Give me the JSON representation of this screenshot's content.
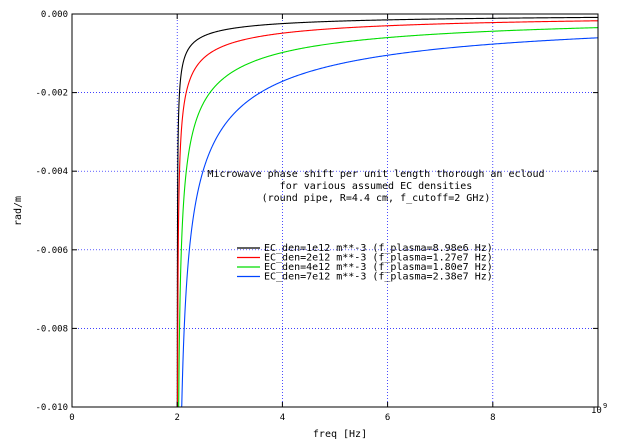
{
  "chart_data": {
    "type": "line",
    "title": "",
    "xlabel": "freq [Hz]",
    "ylabel": "rad/m",
    "xlim": [
      0,
      10
    ],
    "ylim": [
      -0.01,
      0.0
    ],
    "x_exponent_base": "10",
    "x_exponent_power": "9",
    "x_ticks": [
      0,
      2,
      4,
      6,
      8,
      10
    ],
    "x_tick_labels": [
      "0",
      "2",
      "4",
      "6",
      "8",
      "10"
    ],
    "y_ticks": [
      0.0,
      -0.002,
      -0.004,
      -0.006,
      -0.008,
      -0.01
    ],
    "y_tick_labels": [
      "0.000",
      "-0.002",
      "-0.004",
      "-0.006",
      "-0.008",
      "-0.010"
    ],
    "grid": true,
    "grid_color": "#0000ff",
    "legend_position": "center-right",
    "annotation": [
      "Microwave phase shift per unit length thorough an ecloud",
      "for various assumed EC densities",
      "(round pipe, R=4.4 cm, f_cutoff=2 GHz)"
    ],
    "series": [
      {
        "name": "EC_den=1e12 m**-3 (f_plasma=8.98e6 Hz)",
        "color": "#000000",
        "fp_ghz": 0.00898
      },
      {
        "name": "EC_den=2e12 m**-3 (f_plasma=1.27e7 Hz)",
        "color": "#ff0000",
        "fp_ghz": 0.0127
      },
      {
        "name": "EC_den=4e12 m**-3 (f_plasma=1.80e7 Hz)",
        "color": "#00dd00",
        "fp_ghz": 0.018
      },
      {
        "name": "EC_den=7e12 m**-3 (f_plasma=2.38e7 Hz)",
        "color": "#0044ff",
        "fp_ghz": 0.0238
      }
    ],
    "cutoff_ghz": 2.0
  }
}
